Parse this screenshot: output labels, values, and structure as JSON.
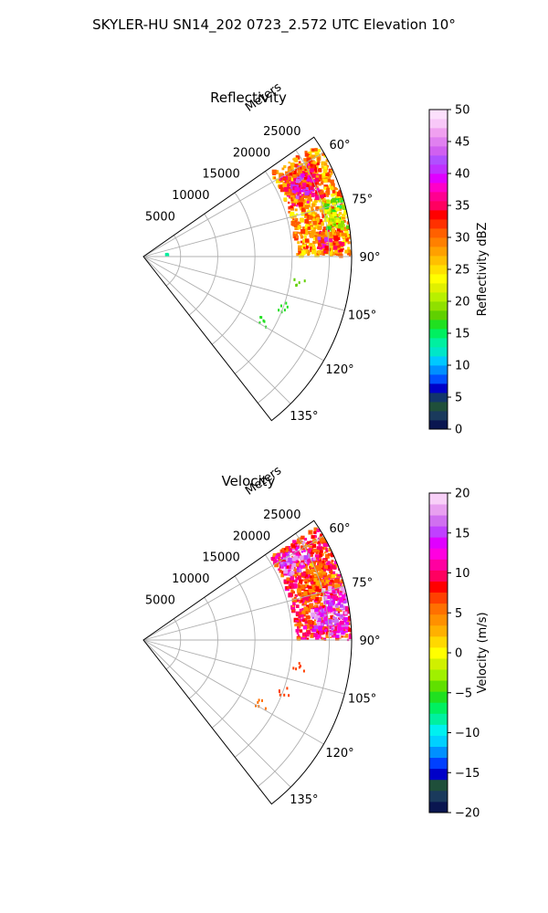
{
  "suptitle": "SKYLER-HU  SN14_202  0723_2.572 UTC Elevation 10°",
  "chart_data": [
    {
      "type": "heatmap",
      "subtype": "polar-sector-ppi",
      "title": "Reflectivity",
      "range_axis_label": "Meters",
      "range_ticks": [
        5000,
        10000,
        15000,
        20000,
        25000
      ],
      "range_tick_labels": [
        "5000",
        "10000",
        "15000",
        "20000",
        "25000"
      ],
      "range_max": 28000,
      "azimuth_range_deg": [
        55,
        142
      ],
      "azimuth_ticks_deg": [
        60,
        75,
        90,
        105,
        120,
        135
      ],
      "azimuth_tick_labels": [
        "60°",
        "75°",
        "90°",
        "105°",
        "120°",
        "135°"
      ],
      "grid": true,
      "colorbar": {
        "label": "Reflectivity dBZ",
        "min": 0,
        "max": 50,
        "ticks": [
          0,
          5,
          10,
          15,
          20,
          25,
          30,
          35,
          40,
          45,
          50
        ],
        "tick_labels": [
          "0",
          "5",
          "10",
          "15",
          "20",
          "25",
          "30",
          "35",
          "40",
          "45",
          "50"
        ],
        "colors": [
          "#0a1650",
          "#1a3a5c",
          "#1f4f3a",
          "#12366b",
          "#0000c8",
          "#0050ff",
          "#0090ff",
          "#00c8ff",
          "#00e6c8",
          "#00f0a0",
          "#00f060",
          "#20e020",
          "#60d000",
          "#90e000",
          "#b8f000",
          "#e0f000",
          "#ffff00",
          "#ffe000",
          "#ffc000",
          "#ffa000",
          "#ff8000",
          "#ff6000",
          "#ff3000",
          "#ff0000",
          "#ff0060",
          "#ff0090",
          "#ff00c8",
          "#e000ff",
          "#c030ff",
          "#b050ff",
          "#d060f0",
          "#e080f0",
          "#f0a0f0",
          "#f8c8f8",
          "#fce0fc"
        ]
      },
      "echo_regions": [
        {
          "az": [
            57,
            90
          ],
          "range": [
            20500,
            28000
          ],
          "value": 28
        },
        {
          "az": [
            60,
            72
          ],
          "range": [
            21000,
            26000
          ],
          "value": 33
        },
        {
          "az": [
            63,
            69
          ],
          "range": [
            22000,
            25000
          ],
          "value": 38
        },
        {
          "az": [
            73,
            82
          ],
          "range": [
            25000,
            28000
          ],
          "value": 20
        },
        {
          "az": [
            82,
            89
          ],
          "range": [
            23500,
            27000
          ],
          "value": 31
        },
        {
          "az": [
            84,
            88
          ],
          "range": [
            23500,
            25000
          ],
          "value": 37
        }
      ],
      "echo_specks": [
        {
          "az": [
            98,
            101
          ],
          "range": [
            20500,
            22000
          ],
          "value": 18
        },
        {
          "az": [
            108,
            112
          ],
          "range": [
            19500,
            21000
          ],
          "value": 17
        },
        {
          "az": [
            117,
            121
          ],
          "range": [
            17500,
            19000
          ],
          "value": 16
        },
        {
          "az": [
            84,
            86
          ],
          "range": [
            3000,
            3500
          ],
          "value": 14
        }
      ]
    },
    {
      "type": "heatmap",
      "subtype": "polar-sector-ppi",
      "title": "Velocity",
      "range_axis_label": "Meters",
      "range_ticks": [
        5000,
        10000,
        15000,
        20000,
        25000
      ],
      "range_tick_labels": [
        "5000",
        "10000",
        "15000",
        "20000",
        "25000"
      ],
      "range_max": 28000,
      "azimuth_range_deg": [
        55,
        142
      ],
      "azimuth_ticks_deg": [
        60,
        75,
        90,
        105,
        120,
        135
      ],
      "azimuth_tick_labels": [
        "60°",
        "75°",
        "90°",
        "105°",
        "120°",
        "135°"
      ],
      "grid": true,
      "colorbar": {
        "label": "Velocity (m/s)",
        "min": -20,
        "max": 20,
        "ticks": [
          -20,
          -15,
          -10,
          -5,
          0,
          5,
          10,
          15,
          20
        ],
        "tick_labels": [
          "−20",
          "−15",
          "−10",
          "−5",
          "0",
          "5",
          "10",
          "15",
          "20"
        ],
        "colors": [
          "#0a1650",
          "#1a3a5c",
          "#1f4f3a",
          "#0000c8",
          "#0040ff",
          "#0090ff",
          "#00d0ff",
          "#00f0f0",
          "#00f0a0",
          "#00f060",
          "#20e020",
          "#60e000",
          "#a0f000",
          "#d0f000",
          "#ffff00",
          "#ffd800",
          "#ffb000",
          "#ff9000",
          "#ff7000",
          "#ff4000",
          "#ff0000",
          "#ff0060",
          "#ff00a0",
          "#ff00e0",
          "#e000ff",
          "#c040ff",
          "#d070f0",
          "#e8a0f0",
          "#f8d0f8"
        ]
      },
      "echo_regions": [
        {
          "az": [
            57,
            90
          ],
          "range": [
            20500,
            28000
          ],
          "value": 8
        },
        {
          "az": [
            58,
            66
          ],
          "range": [
            21000,
            25500
          ],
          "value": 15
        },
        {
          "az": [
            66,
            76
          ],
          "range": [
            22500,
            27000
          ],
          "value": 6
        },
        {
          "az": [
            74,
            80
          ],
          "range": [
            25000,
            28000
          ],
          "value": 15
        },
        {
          "az": [
            80,
            89
          ],
          "range": [
            23000,
            27500
          ],
          "value": 15
        }
      ],
      "echo_specks": [
        {
          "az": [
            98,
            101
          ],
          "range": [
            20500,
            22000
          ],
          "value": 7
        },
        {
          "az": [
            108,
            112
          ],
          "range": [
            19500,
            21000
          ],
          "value": 7
        },
        {
          "az": [
            117,
            121
          ],
          "range": [
            17500,
            19000
          ],
          "value": 6
        }
      ]
    }
  ]
}
